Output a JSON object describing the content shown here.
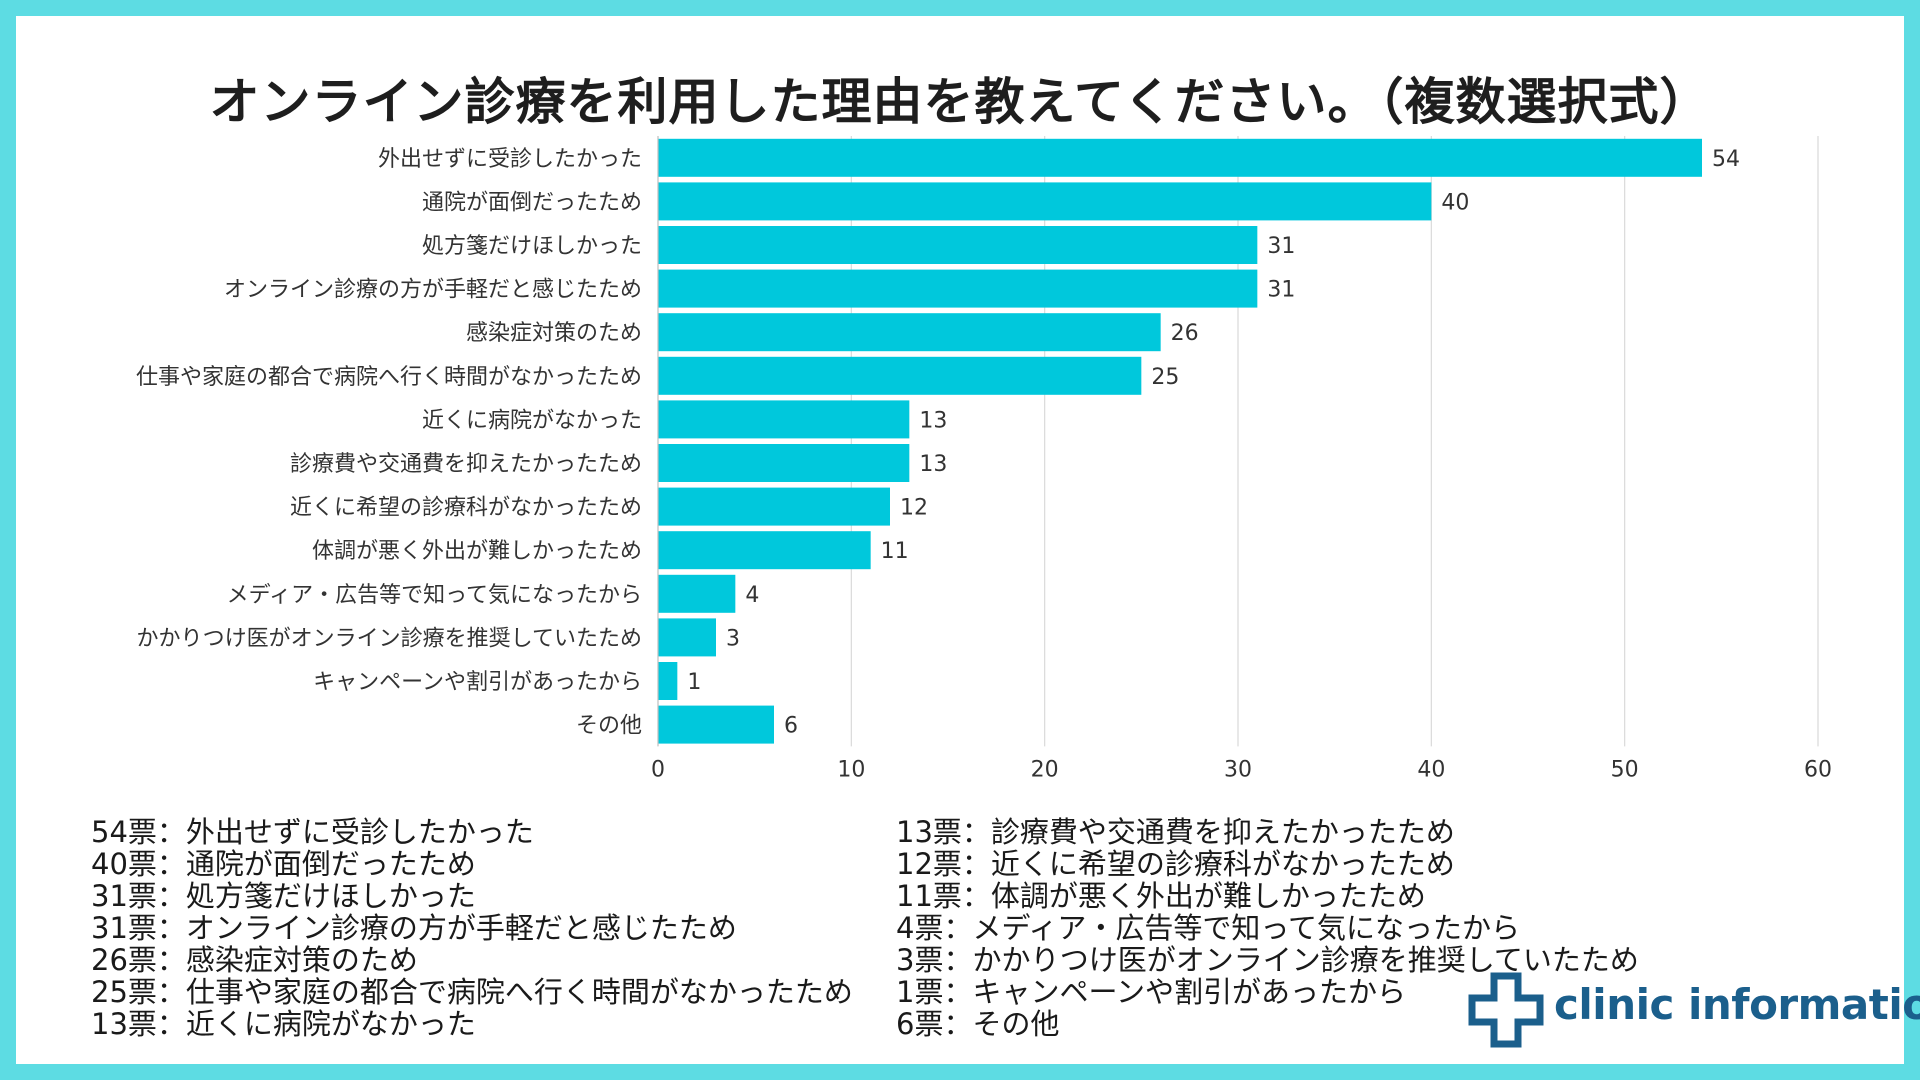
{
  "title": "オンライン診療を利用した理由を教えてください。（複数選択式）",
  "colors": {
    "frame": "#5ddce3",
    "bar": "#00c8dc",
    "grid": "#d9d9d9",
    "logo": "#1b5f8c"
  },
  "chart_data": {
    "type": "bar",
    "orientation": "horizontal",
    "title": "オンライン診療を利用した理由を教えてください。（複数選択式）",
    "categories": [
      "外出せずに受診したかった",
      "通院が面倒だったため",
      "処方箋だけほしかった",
      "オンライン診療の方が手軽だと感じたため",
      "感染症対策のため",
      "仕事や家庭の都合で病院へ行く時間がなかったため",
      "近くに病院がなかった",
      "診療費や交通費を抑えたかったため",
      "近くに希望の診療科がなかったため",
      "体調が悪く外出が難しかったため",
      "メディア・広告等で知って気になったから",
      "かかりつけ医がオンライン診療を推奨していたため",
      "キャンペーンや割引があったから",
      "その他"
    ],
    "values": [
      54,
      40,
      31,
      31,
      26,
      25,
      13,
      13,
      12,
      11,
      4,
      3,
      1,
      6
    ],
    "xlim": [
      0,
      60
    ],
    "xticks": [
      0,
      10,
      20,
      30,
      40,
      50,
      60
    ],
    "xlabel": "",
    "ylabel": "",
    "grid": true,
    "legend": "none"
  },
  "legend_left": [
    "54票：外出せずに受診したかった",
    "40票：通院が面倒だったため",
    "31票：処方箋だけほしかった",
    "31票：オンライン診療の方が手軽だと感じたため",
    "26票：感染症対策のため",
    "25票：仕事や家庭の都合で病院へ行く時間がなかったため",
    "13票：近くに病院がなかった"
  ],
  "legend_right": [
    "13票：診療費や交通費を抑えたかったため",
    "12票：近くに希望の診療科がなかったため",
    "11票：体調が悪く外出が難しかったため",
    "4票：メディア・広告等で知って気になったから",
    "3票：かかりつけ医がオンライン診療を推奨していたため",
    "1票：キャンペーンや割引があったから",
    "6票：その他"
  ],
  "logo": {
    "text": "clinic information",
    "icon": "medical-cross-icon"
  }
}
